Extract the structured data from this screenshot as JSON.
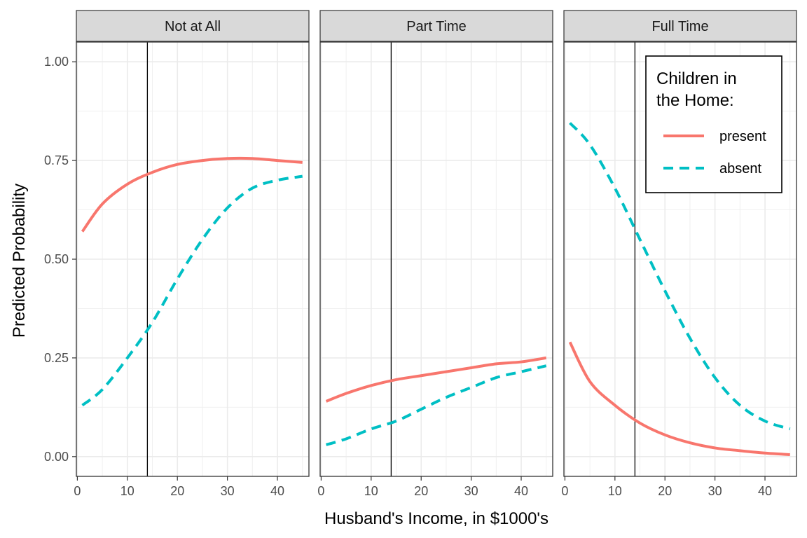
{
  "chart_data": {
    "type": "line",
    "xlabel": "Husband's Income, in $1000's",
    "ylabel": "Predicted Probability",
    "xlim": [
      -0.2,
      46.3
    ],
    "ylim": [
      -0.05,
      1.05
    ],
    "x_ticks": [
      0,
      10,
      20,
      30,
      40
    ],
    "x_tick_labels": [
      "0",
      "10",
      "20",
      "30",
      "40"
    ],
    "y_ticks": [
      0,
      0.25,
      0.5,
      0.75,
      1.0
    ],
    "y_tick_labels": [
      "0.00",
      "0.25",
      "0.50",
      "0.75",
      "1.00"
    ],
    "grid": true,
    "reference_line_x": 14,
    "legend": {
      "title_lines": [
        "Children in",
        "the Home:"
      ],
      "position": "top-right",
      "items": [
        {
          "key": "present",
          "label": "present",
          "color": "#F8766D",
          "linetype": "solid"
        },
        {
          "key": "absent",
          "label": "absent",
          "color": "#00BFC4",
          "linetype": "dashed"
        }
      ]
    },
    "x": [
      1,
      5,
      10,
      15,
      20,
      25,
      30,
      35,
      40,
      45
    ],
    "facets": [
      {
        "title": "Not at All",
        "series": [
          {
            "name": "present",
            "values": [
              0.57,
              0.64,
              0.69,
              0.72,
              0.74,
              0.75,
              0.755,
              0.755,
              0.75,
              0.745
            ]
          },
          {
            "name": "absent",
            "values": [
              0.13,
              0.17,
              0.25,
              0.34,
              0.45,
              0.55,
              0.63,
              0.68,
              0.7,
              0.71
            ]
          }
        ]
      },
      {
        "title": "Part Time",
        "series": [
          {
            "name": "present",
            "values": [
              0.14,
              0.16,
              0.18,
              0.195,
              0.205,
              0.215,
              0.225,
              0.235,
              0.24,
              0.25
            ]
          },
          {
            "name": "absent",
            "values": [
              0.03,
              0.045,
              0.07,
              0.09,
              0.12,
              0.15,
              0.175,
              0.2,
              0.215,
              0.23
            ]
          }
        ]
      },
      {
        "title": "Full Time",
        "series": [
          {
            "name": "present",
            "values": [
              0.29,
              0.19,
              0.13,
              0.085,
              0.055,
              0.035,
              0.022,
              0.015,
              0.009,
              0.005
            ]
          },
          {
            "name": "absent",
            "values": [
              0.845,
              0.79,
              0.68,
              0.55,
              0.42,
              0.3,
              0.2,
              0.13,
              0.09,
              0.07
            ]
          }
        ]
      }
    ]
  }
}
